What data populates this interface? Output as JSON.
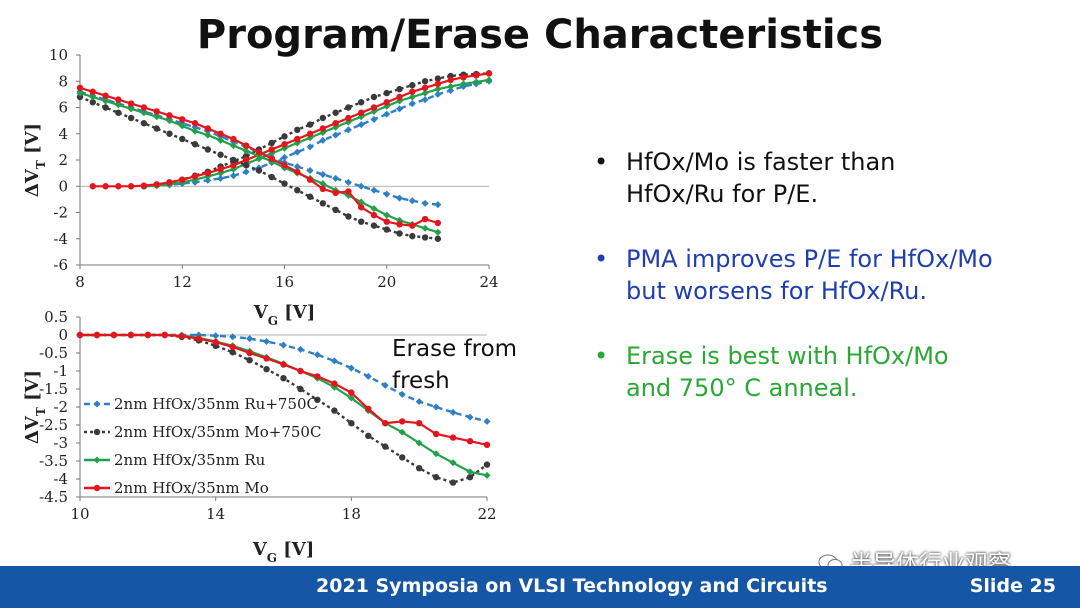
{
  "slide": {
    "title": "Program/Erase Characteristics",
    "footer_text": "2021 Symposia on VLSI Technology and Circuits",
    "slide_number": "Slide 25",
    "watermark": "半导体行业观察"
  },
  "bullets": [
    {
      "text_line1": "HfOx/Mo is faster than",
      "text_line2": "HfOx/Ru for P/E.",
      "color": "#111111"
    },
    {
      "text_line1": "PMA improves P/E for HfOx/Mo",
      "text_line2": "but worsens for HfOx/Ru.",
      "color": "#1f3fb0"
    },
    {
      "text_line1": "Erase is best with HfOx/Mo",
      "text_line2": "and 750° C anneal.",
      "color": "#2aa836"
    }
  ],
  "colors": {
    "footer": "#1556a6",
    "ru750": "#2f7fc6",
    "mo750": "#3a3a3a",
    "ru": "#22a04a",
    "mo": "#e3161d"
  },
  "chart_data": [
    {
      "type": "line",
      "xlabel": "V",
      "xlabel_sub": "G",
      "xlabel_unit": " [V]",
      "ylabel": "ΔV",
      "ylabel_sub": "T",
      "ylabel_unit": " [V]",
      "xlim": [
        8,
        24
      ],
      "ylim": [
        -6,
        10
      ],
      "xticks": [
        8,
        12,
        16,
        20,
        24
      ],
      "yticks": [
        -6,
        -4,
        -2,
        0,
        2,
        4,
        6,
        8,
        10
      ],
      "series": [
        {
          "key": "ru750",
          "style": "dashed",
          "marker": "diamond",
          "x": [
            10.5,
            11,
            11.5,
            12,
            12.5,
            13,
            13.5,
            14,
            14.5,
            15,
            15.5,
            16,
            16.5,
            17,
            17.5,
            18,
            18.5,
            19,
            19.5,
            20,
            20.5,
            21,
            21.5,
            22,
            22.5,
            23,
            23.5,
            24
          ],
          "y": [
            0,
            0.05,
            0.1,
            0.2,
            0.3,
            0.45,
            0.6,
            0.8,
            1.1,
            1.4,
            1.8,
            2.2,
            2.6,
            3.0,
            3.5,
            3.9,
            4.3,
            4.7,
            5.1,
            5.5,
            5.9,
            6.3,
            6.6,
            7.0,
            7.3,
            7.6,
            7.8,
            8.0
          ]
        },
        {
          "key": "mo750",
          "style": "dotted",
          "marker": "circle",
          "x": [
            10.5,
            11,
            11.5,
            12,
            12.5,
            13,
            13.5,
            14,
            14.5,
            15,
            15.5,
            16,
            16.5,
            17,
            17.5,
            18,
            18.5,
            19,
            19.5,
            20,
            20.5,
            21,
            21.5,
            22,
            22.5,
            23,
            23.5,
            24
          ],
          "y": [
            0,
            0.1,
            0.3,
            0.5,
            0.8,
            1.1,
            1.5,
            1.9,
            2.3,
            2.8,
            3.3,
            3.8,
            4.3,
            4.7,
            5.2,
            5.6,
            6.0,
            6.4,
            6.8,
            7.1,
            7.4,
            7.7,
            8.0,
            8.2,
            8.4,
            8.5,
            8.55,
            8.6
          ]
        },
        {
          "key": "ru",
          "style": "solid",
          "marker": "diamond",
          "x": [
            10.5,
            11,
            11.5,
            12,
            12.5,
            13,
            13.5,
            14,
            14.5,
            15,
            15.5,
            16,
            16.5,
            17,
            17.5,
            18,
            18.5,
            19,
            19.5,
            20,
            20.5,
            21,
            21.5,
            22,
            22.5,
            23,
            23.5,
            24
          ],
          "y": [
            0,
            0.05,
            0.15,
            0.3,
            0.5,
            0.75,
            1.0,
            1.3,
            1.7,
            2.1,
            2.5,
            2.9,
            3.3,
            3.7,
            4.1,
            4.5,
            4.9,
            5.3,
            5.7,
            6.1,
            6.5,
            6.8,
            7.1,
            7.4,
            7.6,
            7.8,
            7.95,
            8.1
          ]
        },
        {
          "key": "mo",
          "style": "solid",
          "marker": "circle",
          "x": [
            8.5,
            9,
            9.5,
            10,
            10.5,
            11,
            11.5,
            12,
            12.5,
            13,
            13.5,
            14,
            14.5,
            15,
            15.5,
            16,
            16.5,
            17,
            17.5,
            18,
            18.5,
            19,
            19.5,
            20,
            20.5,
            21,
            21.5,
            22,
            22.5,
            23,
            23.5,
            24
          ],
          "y": [
            0,
            0,
            0,
            0,
            0.05,
            0.15,
            0.3,
            0.5,
            0.75,
            1.0,
            1.3,
            1.6,
            2.0,
            2.4,
            2.8,
            3.2,
            3.6,
            4.0,
            4.4,
            4.8,
            5.2,
            5.6,
            6.0,
            6.4,
            6.8,
            7.2,
            7.5,
            7.8,
            8.1,
            8.3,
            8.45,
            8.6
          ]
        },
        {
          "key": "ru750",
          "style": "dashed",
          "marker": "diamond",
          "x": [
            8,
            8.5,
            9,
            9.5,
            10,
            10.5,
            11,
            11.5,
            12,
            12.5,
            13,
            13.5,
            14,
            14.5,
            15,
            15.5,
            16,
            16.5,
            17,
            17.5,
            18,
            18.5,
            19,
            19.5,
            20,
            20.5,
            21,
            21.5,
            22
          ],
          "y": [
            7.2,
            6.9,
            6.6,
            6.3,
            6.0,
            5.7,
            5.4,
            5.1,
            4.8,
            4.5,
            4.2,
            3.8,
            3.4,
            3.0,
            2.6,
            2.2,
            1.8,
            1.5,
            1.2,
            0.9,
            0.6,
            0.3,
            0.0,
            -0.3,
            -0.6,
            -0.9,
            -1.1,
            -1.3,
            -1.4
          ]
        },
        {
          "key": "mo750",
          "style": "dotted",
          "marker": "circle",
          "x": [
            8,
            8.5,
            9,
            9.5,
            10,
            10.5,
            11,
            11.5,
            12,
            12.5,
            13,
            13.5,
            14,
            14.5,
            15,
            15.5,
            16,
            16.5,
            17,
            17.5,
            18,
            18.5,
            19,
            19.5,
            20,
            20.5,
            21,
            21.5,
            22
          ],
          "y": [
            6.8,
            6.4,
            6.0,
            5.6,
            5.2,
            4.8,
            4.4,
            4.0,
            3.6,
            3.2,
            2.8,
            2.4,
            2.0,
            1.6,
            1.2,
            0.7,
            0.2,
            -0.3,
            -0.8,
            -1.3,
            -1.8,
            -2.3,
            -2.7,
            -3.0,
            -3.3,
            -3.6,
            -3.8,
            -3.9,
            -4.0
          ]
        },
        {
          "key": "ru",
          "style": "solid",
          "marker": "diamond",
          "x": [
            8,
            8.5,
            9,
            9.5,
            10,
            10.5,
            11,
            11.5,
            12,
            12.5,
            13,
            13.5,
            14,
            14.5,
            15,
            15.5,
            16,
            16.5,
            17,
            17.5,
            18,
            18.5,
            19,
            19.5,
            20,
            20.5,
            21,
            21.5,
            22
          ],
          "y": [
            7.1,
            6.8,
            6.5,
            6.2,
            5.9,
            5.6,
            5.3,
            5.0,
            4.6,
            4.2,
            3.9,
            3.5,
            3.1,
            2.7,
            2.3,
            1.9,
            1.4,
            1.0,
            0.6,
            0.2,
            -0.3,
            -0.7,
            -1.2,
            -1.7,
            -2.2,
            -2.6,
            -2.9,
            -3.2,
            -3.5
          ]
        },
        {
          "key": "mo",
          "style": "solid",
          "marker": "circle",
          "x": [
            8,
            8.5,
            9,
            9.5,
            10,
            10.5,
            11,
            11.5,
            12,
            12.5,
            13,
            13.5,
            14,
            14.5,
            15,
            15.5,
            16,
            16.5,
            17,
            17.5,
            18,
            18.5,
            19,
            19.5,
            20,
            20.5,
            21,
            21.5,
            22
          ],
          "y": [
            7.5,
            7.2,
            6.9,
            6.6,
            6.3,
            6.0,
            5.7,
            5.4,
            5.1,
            4.8,
            4.4,
            4.0,
            3.6,
            3.1,
            2.6,
            2.1,
            1.6,
            1.1,
            0.5,
            -0.2,
            -0.5,
            -0.4,
            -1.6,
            -2.2,
            -2.7,
            -2.9,
            -3.0,
            -2.5,
            -2.8
          ]
        }
      ]
    },
    {
      "type": "line",
      "annotation": "Erase from\nfresh",
      "xlabel": "V",
      "xlabel_sub": "G",
      "xlabel_unit": " [V]",
      "ylabel": "ΔV",
      "ylabel_sub": "T",
      "ylabel_unit": " [V]",
      "xlim": [
        10,
        22
      ],
      "ylim": [
        -4.5,
        0.5
      ],
      "xticks": [
        10,
        14,
        18,
        22
      ],
      "yticks": [
        -4.5,
        -4,
        -3.5,
        -3,
        -2.5,
        -2,
        -1.5,
        -1,
        -0.5,
        0,
        0.5
      ],
      "legend_placement": "left",
      "series": [
        {
          "key": "ru750",
          "name": "2nm HfOx/35nm Ru+750C",
          "style": "dashed",
          "marker": "diamond",
          "x": [
            10,
            10.5,
            11,
            11.5,
            12,
            12.5,
            13,
            13.5,
            14,
            14.5,
            15,
            15.5,
            16,
            16.5,
            17,
            17.5,
            18,
            18.5,
            19,
            19.5,
            20,
            20.5,
            21,
            21.5,
            22
          ],
          "y": [
            0,
            0,
            0,
            0,
            0,
            0,
            0,
            0,
            -0.02,
            -0.05,
            -0.1,
            -0.18,
            -0.28,
            -0.4,
            -0.55,
            -0.72,
            -0.92,
            -1.15,
            -1.4,
            -1.65,
            -1.85,
            -2.0,
            -2.15,
            -2.28,
            -2.4
          ]
        },
        {
          "key": "mo750",
          "name": "2nm HfOx/35nm Mo+750C",
          "style": "dotted",
          "marker": "circle",
          "x": [
            10,
            10.5,
            11,
            11.5,
            12,
            12.5,
            13,
            13.5,
            14,
            14.5,
            15,
            15.5,
            16,
            16.5,
            17,
            17.5,
            18,
            18.5,
            19,
            19.5,
            20,
            20.5,
            21,
            21.5,
            22
          ],
          "y": [
            0,
            0,
            0,
            0,
            0,
            0,
            -0.05,
            -0.15,
            -0.3,
            -0.48,
            -0.7,
            -0.95,
            -1.2,
            -1.5,
            -1.8,
            -2.1,
            -2.45,
            -2.8,
            -3.1,
            -3.4,
            -3.7,
            -3.95,
            -4.1,
            -3.95,
            -3.6
          ]
        },
        {
          "key": "ru",
          "name": "2nm HfOx/35nm Ru",
          "style": "solid",
          "marker": "diamond",
          "x": [
            10,
            10.5,
            11,
            11.5,
            12,
            12.5,
            13,
            13.5,
            14,
            14.5,
            15,
            15.5,
            16,
            16.5,
            17,
            17.5,
            18,
            18.5,
            19,
            19.5,
            20,
            20.5,
            21,
            21.5,
            22
          ],
          "y": [
            0,
            0,
            0,
            0,
            0,
            0,
            -0.02,
            -0.08,
            -0.18,
            -0.3,
            -0.45,
            -0.62,
            -0.8,
            -1.0,
            -1.2,
            -1.45,
            -1.75,
            -2.1,
            -2.45,
            -2.7,
            -3.0,
            -3.3,
            -3.55,
            -3.8,
            -3.9
          ]
        },
        {
          "key": "mo",
          "name": "2nm HfOx/35nm Mo",
          "style": "solid",
          "marker": "circle",
          "x": [
            10,
            10.5,
            11,
            11.5,
            12,
            12.5,
            13,
            13.5,
            14,
            14.5,
            15,
            15.5,
            16,
            16.5,
            17,
            17.5,
            18,
            18.5,
            19,
            19.5,
            20,
            20.5,
            21,
            21.5,
            22
          ],
          "y": [
            0,
            0,
            0,
            0,
            0,
            0,
            -0.03,
            -0.1,
            -0.2,
            -0.33,
            -0.5,
            -0.65,
            -0.82,
            -1.0,
            -1.15,
            -1.35,
            -1.6,
            -2.05,
            -2.45,
            -2.4,
            -2.45,
            -2.75,
            -2.85,
            -2.95,
            -3.05
          ]
        }
      ]
    }
  ]
}
